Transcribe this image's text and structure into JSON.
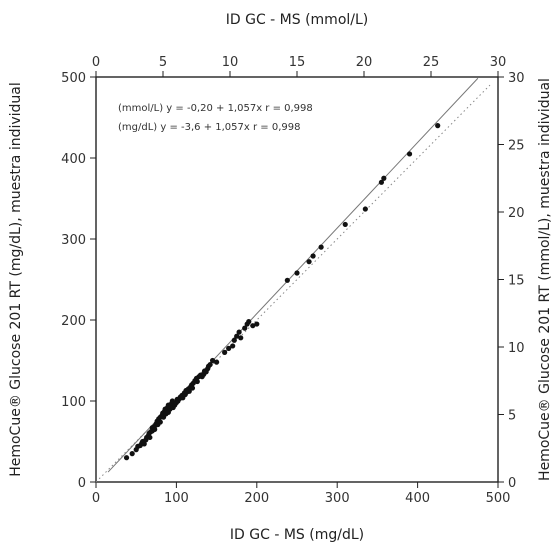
{
  "chart_data": {
    "type": "scatter",
    "title": "",
    "xlabel": "ID GC - MS (mg/dL)",
    "ylabel": "HemoCue® Glucose 201 RT (mg/dL), muestra individual",
    "x2label": "ID GC - MS (mmol/L)",
    "y2label": "HemoCue® Glucose 201 RT (mmol/L), muestra individual",
    "xlim": [
      0,
      500
    ],
    "ylim": [
      0,
      500
    ],
    "x2lim": [
      0,
      30
    ],
    "y2lim": [
      0,
      30
    ],
    "xticks": [
      "0",
      "100",
      "200",
      "300",
      "400",
      "500"
    ],
    "yticks": [
      "0",
      "100",
      "200",
      "300",
      "400",
      "500"
    ],
    "x2ticks": [
      "0",
      "5",
      "10",
      "15",
      "20",
      "25",
      "30"
    ],
    "y2ticks": [
      "0",
      "5",
      "10",
      "15",
      "20",
      "25",
      "30"
    ],
    "annotations": [
      "(mmol/L) y = -0,20 + 1,057x r = 0,998",
      "(mg/dL) y = -3,6 + 1,057x r = 0,998"
    ],
    "regression": {
      "intercept": -3.6,
      "slope": 1.057,
      "x_range": [
        15,
        475
      ]
    },
    "identity_line": {
      "x_range": [
        0,
        490
      ],
      "style": "dotted"
    },
    "grid": false,
    "points": [
      [
        38,
        30
      ],
      [
        45,
        35
      ],
      [
        50,
        40
      ],
      [
        52,
        44
      ],
      [
        55,
        45
      ],
      [
        57,
        48
      ],
      [
        58,
        50
      ],
      [
        60,
        47
      ],
      [
        62,
        52
      ],
      [
        63,
        55
      ],
      [
        65,
        57
      ],
      [
        66,
        60
      ],
      [
        67,
        55
      ],
      [
        68,
        62
      ],
      [
        70,
        63
      ],
      [
        70,
        67
      ],
      [
        72,
        68
      ],
      [
        73,
        65
      ],
      [
        74,
        70
      ],
      [
        75,
        72
      ],
      [
        76,
        75
      ],
      [
        77,
        71
      ],
      [
        78,
        78
      ],
      [
        80,
        80
      ],
      [
        80,
        74
      ],
      [
        82,
        82
      ],
      [
        83,
        85
      ],
      [
        84,
        80
      ],
      [
        85,
        87
      ],
      [
        86,
        90
      ],
      [
        87,
        84
      ],
      [
        88,
        88
      ],
      [
        89,
        92
      ],
      [
        90,
        95
      ],
      [
        90,
        86
      ],
      [
        92,
        90
      ],
      [
        93,
        94
      ],
      [
        94,
        97
      ],
      [
        95,
        100
      ],
      [
        96,
        92
      ],
      [
        98,
        95
      ],
      [
        100,
        98
      ],
      [
        101,
        102
      ],
      [
        102,
        100
      ],
      [
        104,
        103
      ],
      [
        105,
        105
      ],
      [
        107,
        107
      ],
      [
        108,
        104
      ],
      [
        110,
        110
      ],
      [
        111,
        108
      ],
      [
        112,
        113
      ],
      [
        113,
        111
      ],
      [
        115,
        115
      ],
      [
        116,
        112
      ],
      [
        118,
        118
      ],
      [
        119,
        120
      ],
      [
        120,
        116
      ],
      [
        121,
        122
      ],
      [
        123,
        125
      ],
      [
        125,
        128
      ],
      [
        126,
        124
      ],
      [
        128,
        130
      ],
      [
        130,
        132
      ],
      [
        132,
        130
      ],
      [
        134,
        133
      ],
      [
        135,
        137
      ],
      [
        137,
        136
      ],
      [
        139,
        140
      ],
      [
        140,
        143
      ],
      [
        142,
        145
      ],
      [
        145,
        150
      ],
      [
        150,
        148
      ],
      [
        160,
        160
      ],
      [
        165,
        165
      ],
      [
        170,
        168
      ],
      [
        172,
        175
      ],
      [
        175,
        180
      ],
      [
        178,
        185
      ],
      [
        180,
        178
      ],
      [
        185,
        190
      ],
      [
        188,
        195
      ],
      [
        190,
        198
      ],
      [
        195,
        193
      ],
      [
        200,
        195
      ],
      [
        238,
        249
      ],
      [
        250,
        258
      ],
      [
        265,
        272
      ],
      [
        270,
        279
      ],
      [
        280,
        290
      ],
      [
        310,
        318
      ],
      [
        335,
        337
      ],
      [
        355,
        370
      ],
      [
        358,
        375
      ],
      [
        390,
        405
      ],
      [
        425,
        440
      ]
    ]
  }
}
